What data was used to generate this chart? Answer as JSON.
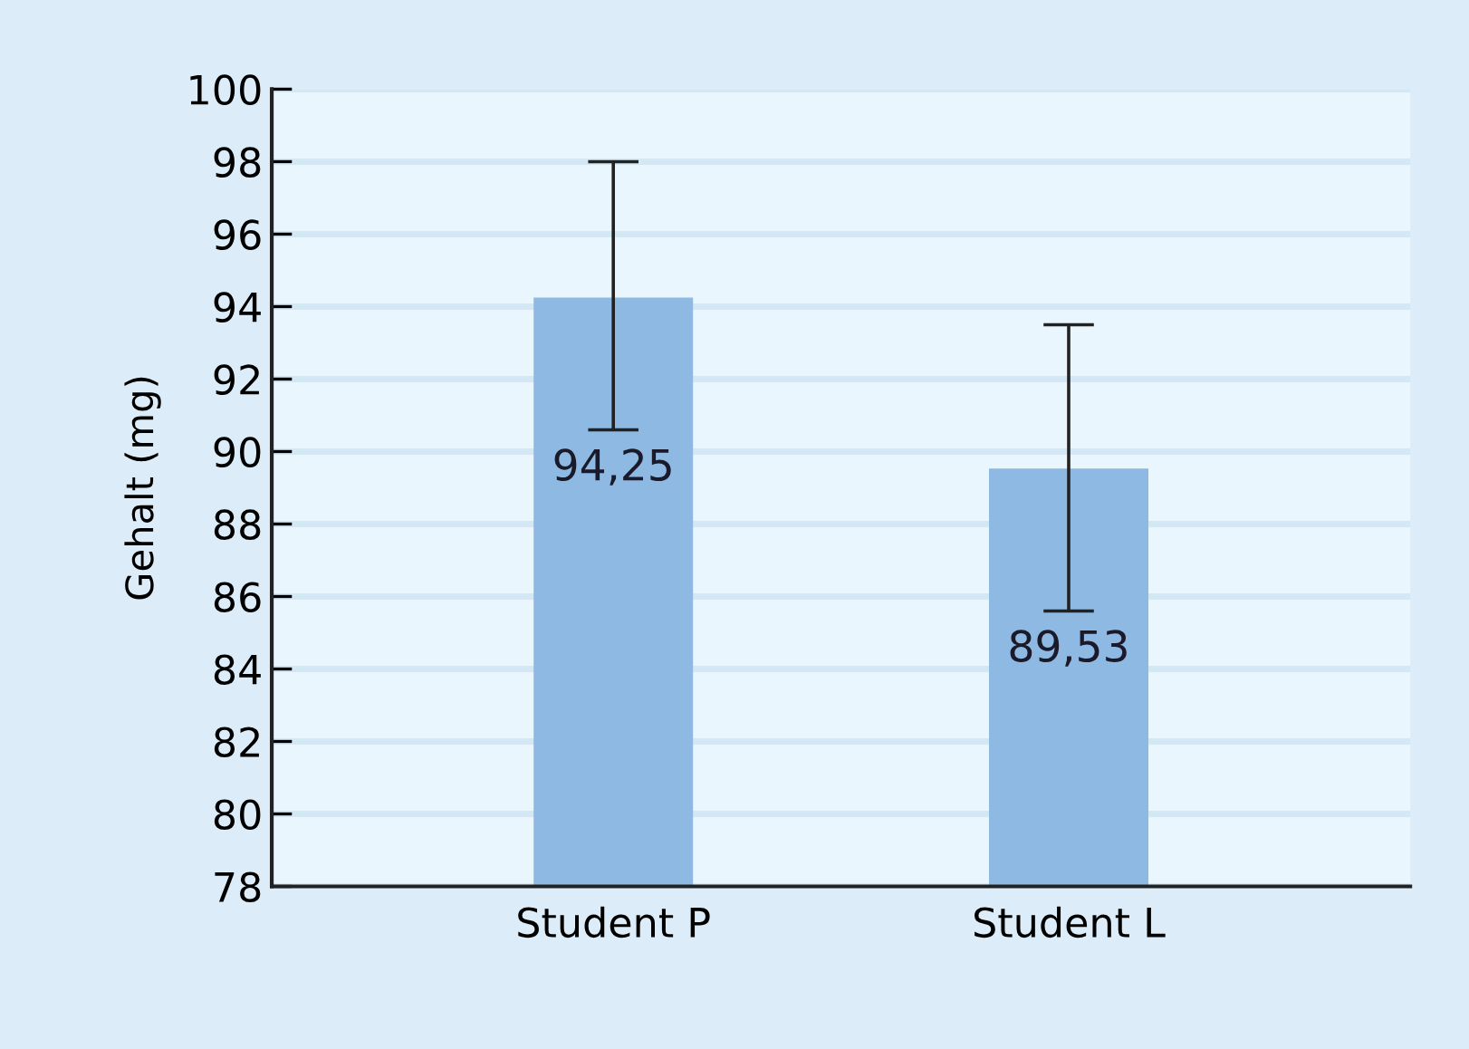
{
  "chart_data": {
    "type": "bar",
    "ylabel": "Gehalt (mg)",
    "categories": [
      "Student P",
      "Student L"
    ],
    "values": [
      94.25,
      89.53
    ],
    "errors": [
      [
        90.6,
        98.0
      ],
      [
        85.6,
        93.5
      ]
    ],
    "value_labels": [
      "94,25",
      "89,53"
    ],
    "color": "#8db9e2",
    "ylim": [
      78,
      100
    ],
    "yticks": [
      78,
      80,
      82,
      84,
      86,
      88,
      90,
      92,
      94,
      96,
      98,
      100
    ],
    "grid": "y"
  }
}
